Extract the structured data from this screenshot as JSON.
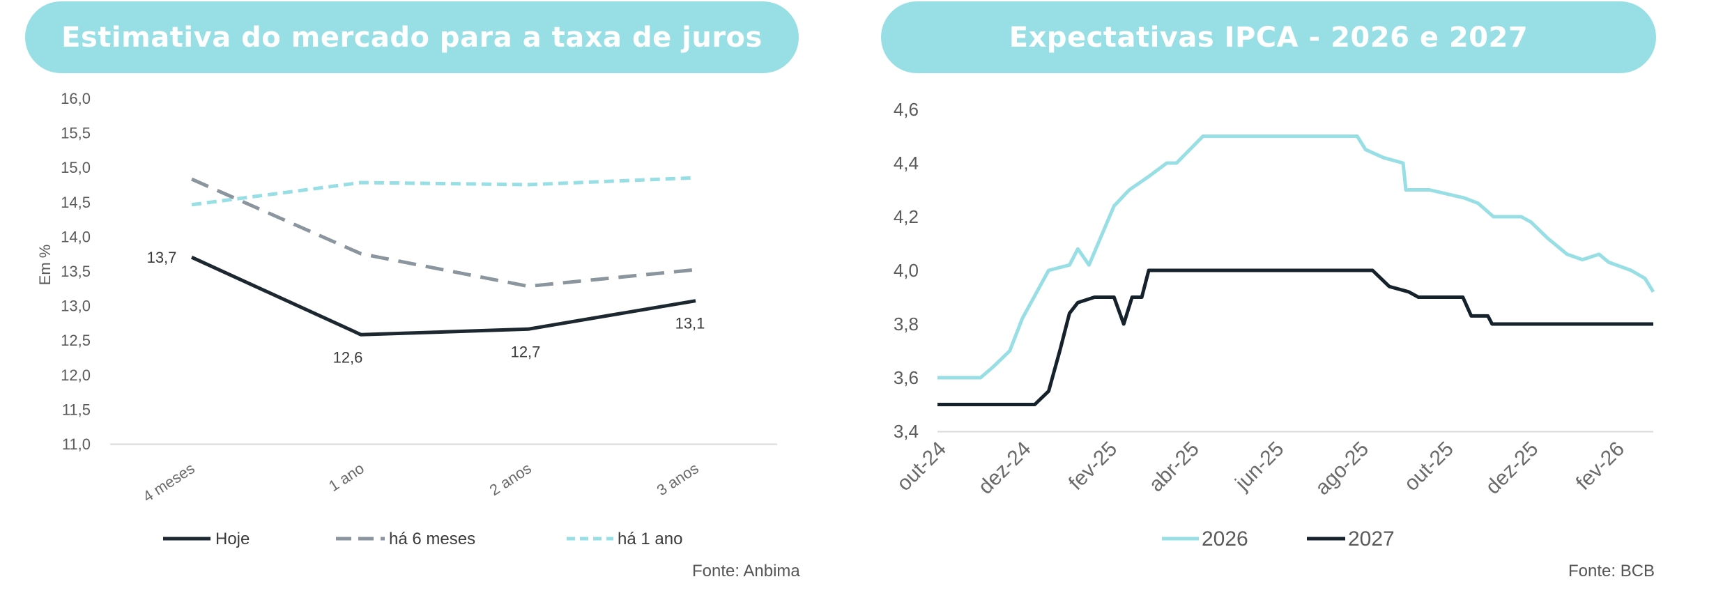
{
  "left_panel": {
    "title": "Estimativa do mercado para a taxa de juros",
    "source": "Fonte: Anbima"
  },
  "right_panel": {
    "title": "Expectativas IPCA - 2026 e 2027",
    "source": "Fonte: BCB"
  },
  "colors": {
    "hoje": "#1c2730",
    "ha6": "#8a959d",
    "ha1": "#97dfe5",
    "s2026": "#97dfe5",
    "s2027": "#15222c"
  },
  "chart_data": [
    {
      "type": "line",
      "title": "Estimativa do mercado para a taxa de juros",
      "ylabel": "Em %",
      "categories": [
        "4 meses",
        "1 ano",
        "2 anos",
        "3 anos"
      ],
      "yticks": [
        "16,0",
        "15,5",
        "15,0",
        "14,5",
        "14,0",
        "13,5",
        "13,0",
        "12,5",
        "12,0",
        "11,5",
        "11,0"
      ],
      "ylim": [
        11.0,
        16.0
      ],
      "legend": "bottom",
      "series": [
        {
          "name": "Hoje",
          "values": [
            13.7,
            12.58,
            12.66,
            13.07
          ],
          "labels": [
            "13,7",
            "12,6",
            "12,7",
            "13,1"
          ],
          "style": "solid"
        },
        {
          "name": "há 6 meses",
          "values": [
            14.83,
            13.75,
            13.28,
            13.52
          ],
          "style": "dashed"
        },
        {
          "name": "há 1 ano",
          "values": [
            14.46,
            14.78,
            14.75,
            14.85
          ],
          "style": "dotted"
        }
      ]
    },
    {
      "type": "line",
      "title": "Expectativas IPCA - 2026 e 2027",
      "x_range": [
        "2024-10-01",
        "2026-02-28"
      ],
      "xticks": [
        "out-24",
        "dez-24",
        "fev-25",
        "abr-25",
        "jun-25",
        "ago-25",
        "out-25",
        "dez-25",
        "fev-26"
      ],
      "yticks": [
        "4,6",
        "4,4",
        "4,2",
        "4,0",
        "3,8",
        "3,6",
        "3,4"
      ],
      "ylim": [
        3.4,
        4.6
      ],
      "legend": "bottom",
      "series": [
        {
          "name": "2026",
          "x": [
            "2024-10-01",
            "2024-11-01",
            "2024-11-10",
            "2024-11-22",
            "2024-12-01",
            "2024-12-20",
            "2025-01-04",
            "2025-01-10",
            "2025-01-18",
            "2025-02-05",
            "2025-02-16",
            "2025-03-02",
            "2025-03-15",
            "2025-03-22",
            "2025-04-10",
            "2025-05-20",
            "2025-06-20",
            "2025-07-30",
            "2025-08-05",
            "2025-08-18",
            "2025-09-01",
            "2025-09-03",
            "2025-09-20",
            "2025-10-15",
            "2025-10-25",
            "2025-11-05",
            "2025-11-25",
            "2025-12-02",
            "2025-12-14",
            "2025-12-28",
            "2026-01-08",
            "2026-01-20",
            "2026-01-27",
            "2026-02-12",
            "2026-02-22",
            "2026-02-28"
          ],
          "values": [
            3.6,
            3.6,
            3.64,
            3.7,
            3.82,
            4.0,
            4.02,
            4.08,
            4.02,
            4.24,
            4.3,
            4.35,
            4.4,
            4.4,
            4.5,
            4.5,
            4.5,
            4.5,
            4.45,
            4.42,
            4.4,
            4.3,
            4.3,
            4.27,
            4.25,
            4.2,
            4.2,
            4.18,
            4.12,
            4.06,
            4.04,
            4.06,
            4.03,
            4.0,
            3.97,
            3.92
          ]
        },
        {
          "name": "2027",
          "x": [
            "2024-10-01",
            "2024-12-10",
            "2024-12-20",
            "2024-12-28",
            "2025-01-04",
            "2025-01-10",
            "2025-01-22",
            "2025-02-05",
            "2025-02-12",
            "2025-02-18",
            "2025-02-25",
            "2025-03-02",
            "2025-08-10",
            "2025-08-22",
            "2025-09-05",
            "2025-09-12",
            "2025-10-14",
            "2025-10-20",
            "2025-11-01",
            "2025-11-04",
            "2026-02-20",
            "2026-02-28"
          ],
          "values": [
            3.5,
            3.5,
            3.55,
            3.7,
            3.84,
            3.88,
            3.9,
            3.9,
            3.8,
            3.9,
            3.9,
            4.0,
            4.0,
            3.94,
            3.92,
            3.9,
            3.9,
            3.83,
            3.83,
            3.8,
            3.8,
            3.8
          ]
        }
      ]
    }
  ]
}
